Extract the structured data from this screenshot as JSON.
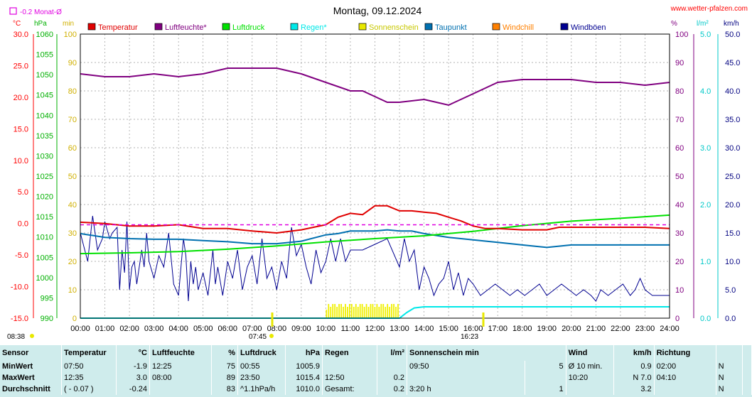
{
  "chart_data": {
    "type": "line",
    "title": "Montag, 09.12.2024",
    "source": "www.wetter-pfalzen.com",
    "avg_marker_label": "-0.2 Monat-Ø",
    "axis_units": {
      "temp": "°C",
      "pressure": "hPa",
      "min": "min",
      "humidity": "%",
      "rain": "l/m²",
      "wind": "km/h"
    },
    "x_ticks": [
      "00:00",
      "01:00",
      "02:00",
      "03:00",
      "04:00",
      "05:00",
      "06:00",
      "07:00",
      "08:00",
      "09:00",
      "10:00",
      "11:00",
      "12:00",
      "13:00",
      "14:00",
      "15:00",
      "16:00",
      "17:00",
      "18:00",
      "19:00",
      "20:00",
      "21:00",
      "22:00",
      "23:00",
      "24:00"
    ],
    "temp_axis": {
      "ticks": [
        "30.0",
        "25.0",
        "20.0",
        "15.0",
        "10.0",
        "5.0",
        "0.0",
        "-5.0",
        "-10.0",
        "-15.0"
      ],
      "range": [
        -15,
        30
      ]
    },
    "pressure_axis": {
      "ticks": [
        "1060",
        "1055",
        "1050",
        "1045",
        "1040",
        "1035",
        "1030",
        "1025",
        "1020",
        "1015",
        "1010",
        "1005",
        "1000",
        "995",
        "990"
      ],
      "range": [
        990,
        1060
      ]
    },
    "minutes_axis": {
      "ticks": [
        "100",
        "90",
        "80",
        "70",
        "60",
        "50",
        "40",
        "30",
        "20",
        "10",
        "0"
      ],
      "range": [
        0,
        100
      ]
    },
    "humidity_axis": {
      "ticks": [
        "100",
        "90",
        "80",
        "70",
        "60",
        "50",
        "40",
        "30",
        "20",
        "10",
        "0"
      ],
      "range": [
        0,
        100
      ]
    },
    "rain_axis": {
      "ticks": [
        "5.0",
        "4.0",
        "3.0",
        "2.0",
        "1.0",
        "0.0"
      ],
      "range": [
        0,
        5
      ]
    },
    "wind_axis": {
      "ticks": [
        "50.0",
        "45.0",
        "40.0",
        "35.0",
        "30.0",
        "25.0",
        "20.0",
        "15.0",
        "10.0",
        "5.0",
        "0.0"
      ],
      "range": [
        0,
        50
      ]
    },
    "sunrise": {
      "time": "07:45",
      "bottom": "08:38"
    },
    "sunset": {
      "time": "16:23"
    },
    "legend": [
      {
        "name": "Temperatur",
        "color": "#e00000"
      },
      {
        "name": "Luftfeuchte*",
        "color": "#800080"
      },
      {
        "name": "Luftdruck",
        "color": "#00e000"
      },
      {
        "name": "Regen*",
        "color": "#00e8e8"
      },
      {
        "name": "Sonnenschein",
        "color": "#e8e800"
      },
      {
        "name": "Taupunkt",
        "color": "#0070b0"
      },
      {
        "name": "Windchill",
        "color": "#ff8000"
      },
      {
        "name": "Windböen",
        "color": "#000090"
      }
    ],
    "month_avg_temp": -0.2,
    "series": [
      {
        "name": "Temperatur",
        "axis": "temp",
        "x": [
          0,
          1,
          2,
          3,
          4,
          5,
          6,
          7,
          8,
          9,
          10,
          10.5,
          11,
          11.5,
          12,
          12.5,
          13,
          13.5,
          14,
          14.5,
          15,
          15.5,
          16,
          16.5,
          17,
          18,
          19,
          19.5,
          20,
          21,
          22,
          22.5,
          23,
          24
        ],
        "y": [
          0.2,
          0.0,
          -0.4,
          -0.4,
          -0.2,
          -0.8,
          -0.8,
          -1.2,
          -1.5,
          -1.0,
          -0.2,
          1.0,
          1.6,
          1.4,
          2.8,
          2.8,
          2.0,
          2.0,
          1.8,
          1.6,
          1.0,
          0.4,
          -0.4,
          -0.8,
          -0.8,
          -1.0,
          -1.0,
          -0.6,
          -0.6,
          -0.6,
          -0.6,
          -0.6,
          -0.6,
          -0.8
        ]
      },
      {
        "name": "Luftfeuchte*",
        "axis": "humidity",
        "x": [
          0,
          1,
          2,
          3,
          4,
          5,
          5.5,
          6,
          7,
          8,
          9,
          10,
          11,
          11.5,
          12,
          12.5,
          13,
          14,
          14.5,
          15,
          16,
          16.5,
          17,
          18,
          19,
          20,
          21,
          22,
          23,
          24
        ],
        "y": [
          86,
          85,
          85,
          86,
          85,
          86,
          87,
          88,
          88,
          88,
          86,
          83,
          80,
          80,
          78,
          76,
          76,
          77,
          76,
          75,
          79,
          81,
          83,
          84,
          84,
          84,
          83,
          83,
          82,
          83
        ]
      },
      {
        "name": "Luftdruck",
        "axis": "pressure",
        "x": [
          0,
          2,
          4,
          6,
          8,
          10,
          12,
          14,
          16,
          18,
          20,
          22,
          24
        ],
        "y": [
          1005.9,
          1006.1,
          1006.4,
          1007.0,
          1007.8,
          1008.8,
          1009.6,
          1010.3,
          1011.4,
          1012.8,
          1013.9,
          1014.6,
          1015.4
        ]
      },
      {
        "name": "Taupunkt",
        "axis": "temp",
        "x": [
          0,
          1,
          2,
          3,
          4,
          5,
          6,
          7,
          8,
          9,
          10,
          10.5,
          11,
          11.5,
          12,
          12.5,
          13,
          13.5,
          14,
          15,
          16,
          17,
          18,
          19,
          20,
          21,
          22,
          23,
          24
        ],
        "y": [
          -1.6,
          -2.2,
          -2.4,
          -2.5,
          -2.5,
          -2.7,
          -2.9,
          -3.2,
          -3.2,
          -2.8,
          -1.8,
          -1.6,
          -1.2,
          -1.2,
          -1.2,
          -1.0,
          -1.2,
          -1.2,
          -1.6,
          -2.2,
          -2.6,
          -3.0,
          -3.4,
          -3.8,
          -3.4,
          -3.4,
          -3.4,
          -3.4,
          -3.4
        ]
      },
      {
        "name": "Regen*",
        "axis": "rain",
        "x": [
          0,
          13,
          13.3,
          13.6,
          14,
          24
        ],
        "y": [
          0,
          0,
          0.1,
          0.18,
          0.2,
          0.2
        ]
      },
      {
        "name": "Windböen",
        "axis": "wind",
        "x": [
          0,
          0.3,
          0.5,
          0.7,
          0.9,
          1.0,
          1.2,
          1.3,
          1.5,
          1.6,
          1.7,
          1.8,
          1.9,
          2.0,
          2.1,
          2.2,
          2.3,
          2.5,
          2.6,
          2.7,
          2.8,
          3.0,
          3.2,
          3.4,
          3.6,
          3.8,
          4.0,
          4.1,
          4.2,
          4.3,
          4.4,
          4.5,
          4.6,
          4.7,
          4.8,
          5.0,
          5.2,
          5.4,
          5.5,
          5.6,
          5.8,
          6.0,
          6.2,
          6.4,
          6.6,
          6.8,
          7.0,
          7.2,
          7.4,
          7.6,
          7.8,
          8.0,
          8.2,
          8.4,
          8.6,
          8.8,
          9.0,
          9.2,
          9.4,
          9.6,
          9.8,
          10.0,
          10.2,
          10.4,
          10.6,
          10.8,
          11.0,
          11.2,
          11.5,
          12.0,
          12.5,
          13.0,
          13.2,
          13.4,
          13.6,
          13.8,
          14.0,
          14.2,
          14.4,
          14.6,
          14.8,
          15.0,
          15.2,
          15.4,
          15.6,
          15.8,
          16.0,
          16.3,
          16.6,
          16.9,
          17.2,
          17.5,
          17.8,
          18.1,
          18.4,
          18.7,
          19.0,
          19.3,
          19.6,
          19.9,
          20.2,
          20.5,
          20.8,
          21.0,
          21.2,
          21.5,
          21.8,
          22.1,
          22.4,
          22.6,
          22.8,
          23.0,
          23.3,
          23.6,
          24.0
        ],
        "y": [
          15,
          10,
          18,
          12,
          14,
          17,
          14,
          15,
          16,
          5,
          12,
          8,
          17,
          5,
          9,
          10,
          6,
          12,
          9,
          15,
          10,
          7,
          11,
          9,
          15,
          6,
          4,
          9,
          14,
          11,
          3,
          10,
          6,
          9,
          5,
          8,
          4,
          12,
          6,
          9,
          4,
          10,
          7,
          12,
          5,
          9,
          11,
          6,
          14,
          7,
          9,
          5,
          10,
          7,
          16,
          11,
          13,
          9,
          6,
          12,
          8,
          10,
          14,
          10,
          14,
          10,
          12,
          12,
          12,
          13,
          14,
          9,
          14,
          10,
          12,
          5,
          9,
          7,
          4,
          6,
          7,
          10,
          5,
          8,
          4,
          7,
          6,
          4,
          5,
          6,
          5,
          4,
          5,
          4,
          5,
          6,
          4,
          5,
          6,
          5,
          4,
          5,
          4,
          3,
          5,
          4,
          5,
          6,
          4,
          5,
          7,
          5,
          4,
          4,
          4
        ]
      }
    ],
    "sunshine_bars": {
      "range": [
        "10:00",
        "13:00"
      ],
      "minutes": [
        3,
        5,
        4,
        5,
        5,
        4,
        5,
        5,
        4,
        5,
        4,
        5,
        5,
        4,
        5,
        4,
        5,
        5,
        4,
        5,
        4,
        5,
        5,
        4,
        5,
        4,
        5,
        5,
        4,
        5,
        4,
        5,
        5,
        4,
        5
      ]
    }
  },
  "stats": {
    "headers": [
      {
        "label": "Sensor",
        "unit": ""
      },
      {
        "label": "Temperatur",
        "unit": "°C"
      },
      {
        "label": "Luftfeuchte",
        "unit": "%"
      },
      {
        "label": "Luftdruck",
        "unit": "hPa"
      },
      {
        "label": "Regen",
        "unit": "l/m²"
      },
      {
        "label": "Sonnenschein min",
        "unit": ""
      },
      {
        "label": "Wind",
        "unit": "km/h"
      },
      {
        "label": "Richtung",
        "unit": ""
      }
    ],
    "rows": [
      {
        "label": "MinWert",
        "c": [
          "07:50",
          "-1.9",
          "12:25",
          "75",
          "00:55",
          "1005.9",
          "",
          "",
          "09:50",
          "5",
          "Ø 10 min.",
          "0.9",
          "02:00",
          "N"
        ]
      },
      {
        "label": "MaxWert",
        "c": [
          "12:35",
          "3.0",
          "08:00",
          "89",
          "23:50",
          "1015.4",
          "12:50",
          "0.2",
          "",
          "",
          "10:20",
          "N 7.0",
          "04:10",
          "N"
        ]
      },
      {
        "label": "Durchschnitt",
        "c": [
          "( - 0.07 )",
          "-0.24",
          "",
          "83",
          "^1.1hPa/h",
          "1010.0",
          "Gesamt:",
          "0.2",
          "3:20 h",
          "1",
          "",
          "3.2",
          "",
          "N"
        ]
      }
    ]
  }
}
